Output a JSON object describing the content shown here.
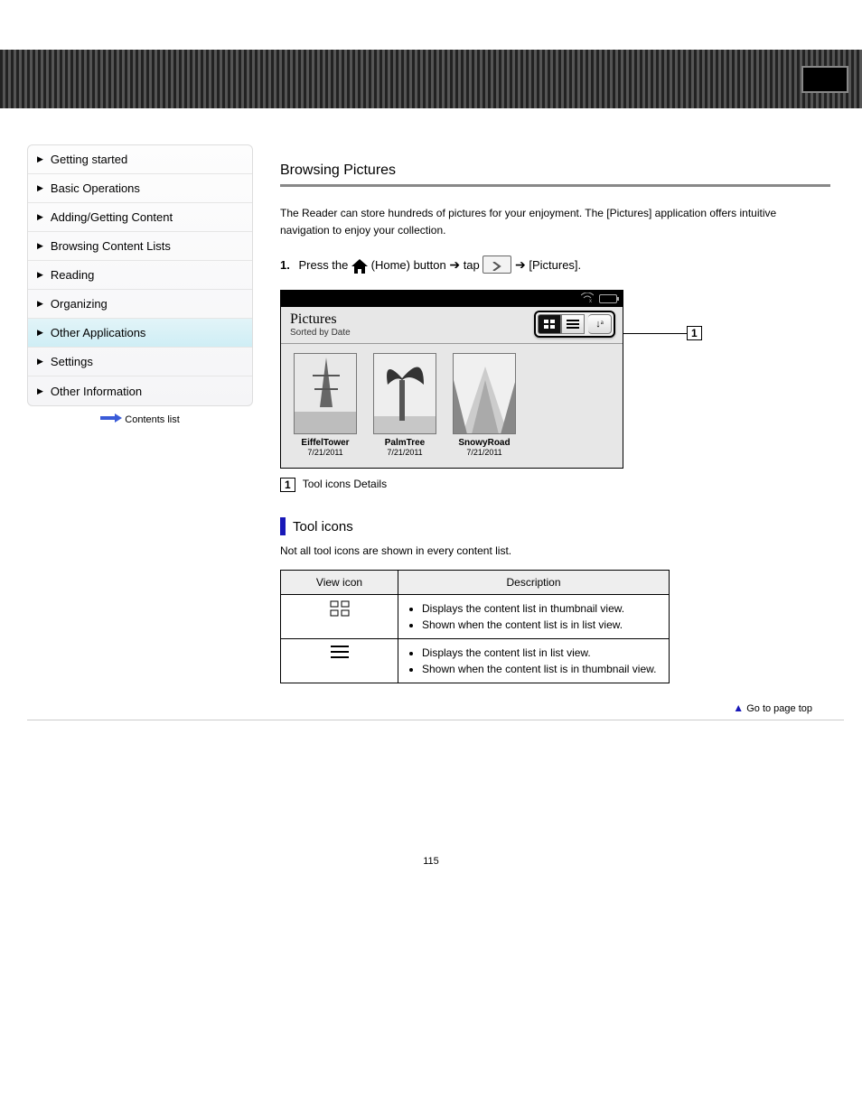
{
  "topbar": {},
  "sidebar": {
    "items": [
      {
        "label": "Getting started"
      },
      {
        "label": "Basic Operations"
      },
      {
        "label": "Adding/Getting Content"
      },
      {
        "label": "Browsing Content Lists"
      },
      {
        "label": "Reading"
      },
      {
        "label": "Organizing"
      },
      {
        "label": "Other Applications"
      },
      {
        "label": "Settings"
      },
      {
        "label": "Other Information"
      }
    ],
    "active_index": 6,
    "footer": "Contents list"
  },
  "heading": "Browsing Pictures",
  "intro": "The Reader can store hundreds of pictures for your enjoyment. The [Pictures] application offers intuitive navigation to enjoy your collection.",
  "step": {
    "num": "1.",
    "text_before": "Press the ",
    "text_mid": " (Home) button ",
    "text_after_tap": " tap ",
    "text_after_picts": " [Pictures]."
  },
  "nav_button_label": "",
  "device": {
    "title": "Pictures",
    "subtitle": "Sorted by Date",
    "sort_glyph": "↓ᴬ",
    "thumbs": [
      {
        "name": "EiffelTower",
        "date": "7/21/2011"
      },
      {
        "name": "PalmTree",
        "date": "7/21/2011"
      },
      {
        "name": "SnowyRoad",
        "date": "7/21/2011"
      }
    ]
  },
  "callout_index": "1",
  "legend": {
    "num": "1",
    "text": "Tool icons Details"
  },
  "tool_section": {
    "title": "Tool icons",
    "note": "Not all tool icons are shown in every content list.",
    "table": {
      "headers": [
        "View icon",
        "Description"
      ],
      "rows": [
        {
          "icon": "grid",
          "desc": [
            "Displays the content list in thumbnail view.",
            "Shown when the content list is in list view."
          ]
        },
        {
          "icon": "list",
          "desc": [
            "Displays the content list in list view.",
            "Shown when the content list is in thumbnail view."
          ]
        }
      ]
    }
  },
  "go_top": "Go to page top",
  "page_number": "115",
  "colors": {
    "accent": "#1818b8",
    "band_dark": "#222222",
    "band_light": "#555555",
    "active_nav_top": "#e2f4f8",
    "active_nav_bottom": "#cfeef5"
  }
}
